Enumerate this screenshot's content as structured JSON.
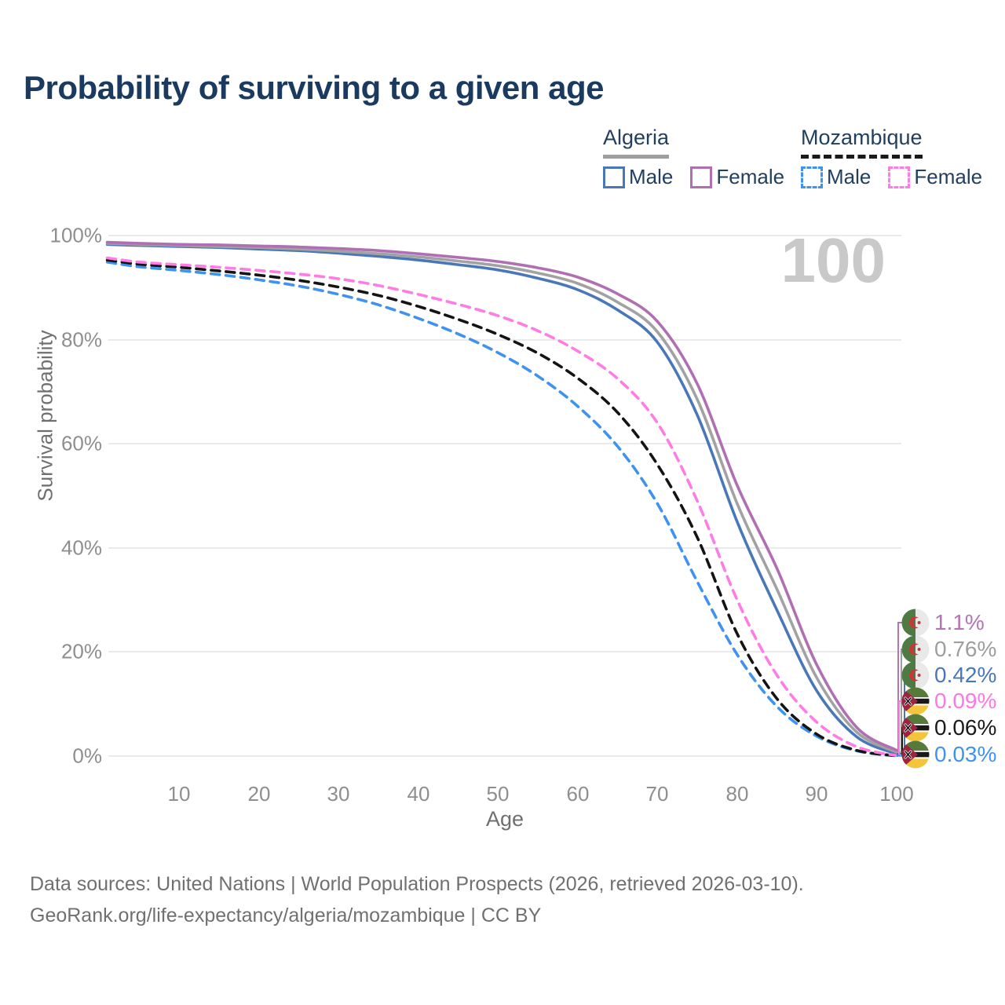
{
  "title": "Probability of surviving to a given age",
  "watermark": "100",
  "legend": {
    "algeria": {
      "label": "Algeria",
      "male": "Male",
      "female": "Female"
    },
    "mozambique": {
      "label": "Mozambique",
      "male": "Male",
      "female": "Female"
    }
  },
  "axis": {
    "y_label": "Survival probability",
    "x_label": "Age",
    "y_ticks": [
      "100%",
      "80%",
      "60%",
      "40%",
      "20%",
      "0%"
    ],
    "x_ticks": [
      "10",
      "20",
      "30",
      "40",
      "50",
      "60",
      "70",
      "80",
      "90",
      "100"
    ]
  },
  "end_labels": [
    {
      "value": "1.1%",
      "color": "#b573b5",
      "country": "Algeria",
      "series": "Algeria Female"
    },
    {
      "value": "0.76%",
      "color": "#9e9e9e",
      "country": "Algeria",
      "series": "Algeria Both sexes"
    },
    {
      "value": "0.42%",
      "color": "#4a77b8",
      "country": "Algeria",
      "series": "Algeria Male"
    },
    {
      "value": "0.09%",
      "color": "#ff77e1",
      "country": "Mozambique",
      "series": "Mozambique Female"
    },
    {
      "value": "0.06%",
      "color": "#1a1a1a",
      "country": "Mozambique",
      "series": "Mozambique Both sexes"
    },
    {
      "value": "0.03%",
      "color": "#3f93ee",
      "country": "Mozambique",
      "series": "Mozambique Male"
    }
  ],
  "footer": {
    "line1": "Data sources: United Nations | World Population Prospects (2026, retrieved 2026-03-10).",
    "line2": "GeoRank.org/life-expectancy/algeria/mozambique | CC BY"
  },
  "chart_data": {
    "type": "line",
    "title": "Probability of surviving to a given age",
    "xlabel": "Age",
    "ylabel": "Survival probability",
    "xlim": [
      0,
      100
    ],
    "ylim_percent": [
      0,
      100
    ],
    "grid": "horizontal",
    "legend_position": "top-right",
    "x_ages": [
      1,
      5,
      10,
      15,
      20,
      25,
      30,
      35,
      40,
      45,
      50,
      55,
      60,
      65,
      70,
      75,
      80,
      85,
      90,
      95,
      100
    ],
    "series": [
      {
        "name": "Algeria Male",
        "country": "Algeria",
        "sex": "Male",
        "style": "solid",
        "color": "#4a77b8",
        "end_value_percent": 0.42,
        "values": [
          98.3,
          98.1,
          97.9,
          97.7,
          97.4,
          97.1,
          96.6,
          96.0,
          95.3,
          94.4,
          93.4,
          91.8,
          89.6,
          85.7,
          79.5,
          65.5,
          45.0,
          28.0,
          12.5,
          3.7,
          0.42
        ]
      },
      {
        "name": "Algeria Both sexes",
        "country": "Algeria",
        "sex": "Both",
        "style": "solid",
        "color": "#a2a2a2",
        "end_value_percent": 0.76,
        "values": [
          98.5,
          98.3,
          98.1,
          97.9,
          97.7,
          97.4,
          97.0,
          96.5,
          95.9,
          95.1,
          94.2,
          92.8,
          90.8,
          87.2,
          81.5,
          68.5,
          48.5,
          32.0,
          15.0,
          4.6,
          0.76
        ]
      },
      {
        "name": "Algeria Female",
        "country": "Algeria",
        "sex": "Female",
        "style": "solid",
        "color": "#b06fb2",
        "end_value_percent": 1.1,
        "values": [
          98.7,
          98.5,
          98.3,
          98.2,
          98.0,
          97.8,
          97.5,
          97.1,
          96.5,
          95.8,
          95.0,
          93.8,
          92.0,
          88.8,
          83.5,
          71.5,
          52.0,
          36.0,
          17.5,
          5.5,
          1.1
        ]
      },
      {
        "name": "Mozambique Male",
        "country": "Mozambique",
        "sex": "Male",
        "style": "dashed",
        "color": "#3f93ee",
        "end_value_percent": 0.03,
        "values": [
          94.9,
          94.0,
          93.3,
          92.5,
          91.5,
          90.3,
          88.7,
          86.7,
          84.1,
          81.1,
          77.5,
          73.0,
          67.2,
          59.5,
          48.5,
          33.5,
          19.5,
          9.5,
          3.8,
          1.0,
          0.03
        ]
      },
      {
        "name": "Mozambique Both sexes",
        "country": "Mozambique",
        "sex": "Both",
        "style": "dashed",
        "color": "#141414",
        "end_value_percent": 0.06,
        "values": [
          95.3,
          94.5,
          93.9,
          93.2,
          92.4,
          91.4,
          90.1,
          88.5,
          86.4,
          83.9,
          81.0,
          77.4,
          72.6,
          66.0,
          56.0,
          42.0,
          23.5,
          11.0,
          4.2,
          1.1,
          0.06
        ]
      },
      {
        "name": "Mozambique Female",
        "country": "Mozambique",
        "sex": "Female",
        "style": "dashed",
        "color": "#ff7ce4",
        "end_value_percent": 0.09,
        "values": [
          95.7,
          94.9,
          94.4,
          93.9,
          93.3,
          92.6,
          91.7,
          90.4,
          88.7,
          86.8,
          84.6,
          81.7,
          77.8,
          72.5,
          64.0,
          49.0,
          30.0,
          15.5,
          6.5,
          1.8,
          0.09
        ]
      }
    ]
  }
}
